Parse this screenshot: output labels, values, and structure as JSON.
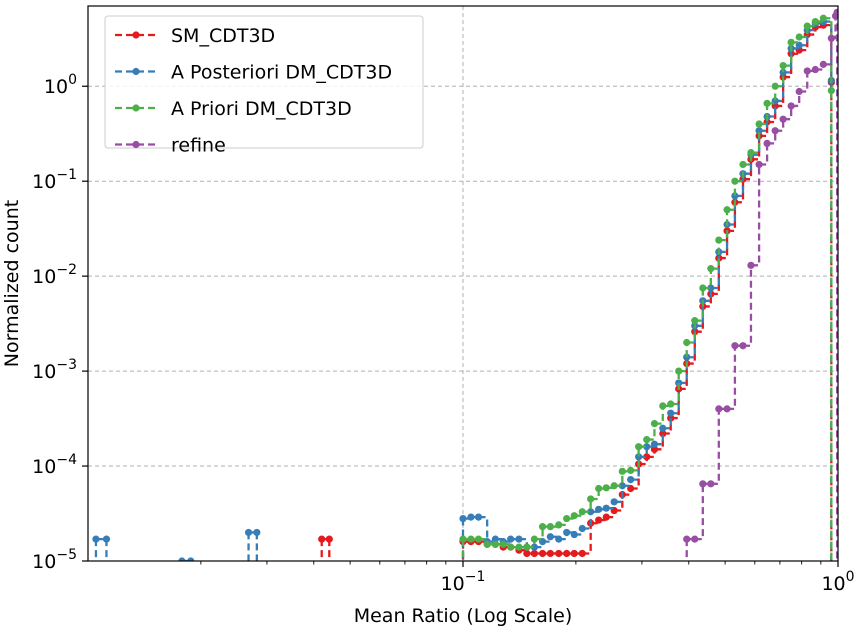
{
  "chart_data": {
    "type": "line",
    "title": "",
    "xlabel": "Mean Ratio (Log Scale)",
    "ylabel": "Normalized count",
    "xscale": "log",
    "yscale": "log",
    "xlim": [
      0.01,
      1.0
    ],
    "ylim": [
      1e-05,
      7
    ],
    "grid": true,
    "legend_position": "upper-left",
    "x_ticks": [
      {
        "value": 0.1,
        "base": "10",
        "exp": "−1"
      },
      {
        "value": 1.0,
        "base": "10",
        "exp": "0"
      }
    ],
    "y_ticks": [
      {
        "value": 1e-05,
        "base": "10",
        "exp": "−5"
      },
      {
        "value": 0.0001,
        "base": "10",
        "exp": "−4"
      },
      {
        "value": 0.001,
        "base": "10",
        "exp": "−3"
      },
      {
        "value": 0.01,
        "base": "10",
        "exp": "−2"
      },
      {
        "value": 0.1,
        "base": "10",
        "exp": "−1"
      },
      {
        "value": 1,
        "base": "10",
        "exp": "0"
      }
    ],
    "series": [
      {
        "name": "SM_CDT3D",
        "color": "#e41a1c",
        "points": [
          [
            0.042,
            1.7e-05
          ],
          [
            0.044,
            1.7e-05
          ],
          [
            0.1,
            1.6e-05
          ],
          [
            0.105,
            1.6e-05
          ],
          [
            0.11,
            1.6e-05
          ],
          [
            0.116,
            1.5e-05
          ],
          [
            0.122,
            1.5e-05
          ],
          [
            0.128,
            1.4e-05
          ],
          [
            0.134,
            1.4e-05
          ],
          [
            0.141,
            1.3e-05
          ],
          [
            0.148,
            1.2e-05
          ],
          [
            0.155,
            1.2e-05
          ],
          [
            0.163,
            1.2e-05
          ],
          [
            0.171,
            1.2e-05
          ],
          [
            0.18,
            1.2e-05
          ],
          [
            0.189,
            1.2e-05
          ],
          [
            0.198,
            1.2e-05
          ],
          [
            0.208,
            1.2e-05
          ],
          [
            0.219,
            2.5e-05
          ],
          [
            0.23,
            2.7e-05
          ],
          [
            0.241,
            2.9e-05
          ],
          [
            0.253,
            3.4e-05
          ],
          [
            0.266,
            5e-05
          ],
          [
            0.28,
            5.8e-05
          ],
          [
            0.294,
            0.000105
          ],
          [
            0.309,
            0.000125
          ],
          [
            0.324,
            0.00015
          ],
          [
            0.341,
            0.00022
          ],
          [
            0.358,
            0.00032
          ],
          [
            0.376,
            0.00065
          ],
          [
            0.395,
            0.0012
          ],
          [
            0.415,
            0.0026
          ],
          [
            0.436,
            0.0048
          ],
          [
            0.458,
            0.0065
          ],
          [
            0.481,
            0.0155
          ],
          [
            0.506,
            0.03
          ],
          [
            0.531,
            0.06
          ],
          [
            0.558,
            0.105
          ],
          [
            0.586,
            0.17
          ],
          [
            0.616,
            0.3
          ],
          [
            0.647,
            0.42
          ],
          [
            0.68,
            0.62
          ],
          [
            0.714,
            1.25
          ],
          [
            0.75,
            2.2
          ],
          [
            0.788,
            2.4
          ],
          [
            0.828,
            3.5
          ],
          [
            0.87,
            4.2
          ],
          [
            0.914,
            4.4
          ],
          [
            0.96,
            1.1
          ]
        ]
      },
      {
        "name": "A Posteriori DM_CDT3D",
        "color": "#377eb8",
        "points": [
          [
            0.0105,
            1.7e-05
          ],
          [
            0.0112,
            1.7e-05
          ],
          [
            0.0178,
            1e-05
          ],
          [
            0.0188,
            1e-05
          ],
          [
            0.0268,
            2e-05
          ],
          [
            0.0282,
            2e-05
          ],
          [
            0.1,
            2.8e-05
          ],
          [
            0.105,
            2.9e-05
          ],
          [
            0.11,
            2.9e-05
          ],
          [
            0.116,
            1.6e-05
          ],
          [
            0.122,
            1.7e-05
          ],
          [
            0.128,
            1.6e-05
          ],
          [
            0.134,
            1.7e-05
          ],
          [
            0.141,
            1.7e-05
          ],
          [
            0.148,
            1.4e-05
          ],
          [
            0.155,
            1.4e-05
          ],
          [
            0.163,
            1.6e-05
          ],
          [
            0.171,
            1.8e-05
          ],
          [
            0.18,
            1.7e-05
          ],
          [
            0.189,
            2e-05
          ],
          [
            0.198,
            1.9e-05
          ],
          [
            0.208,
            2.2e-05
          ],
          [
            0.219,
            3.3e-05
          ],
          [
            0.23,
            3.5e-05
          ],
          [
            0.241,
            3.6e-05
          ],
          [
            0.253,
            4.2e-05
          ],
          [
            0.266,
            6.2e-05
          ],
          [
            0.28,
            7.2e-05
          ],
          [
            0.294,
            0.000125
          ],
          [
            0.309,
            0.00016
          ],
          [
            0.324,
            0.00017
          ],
          [
            0.341,
            0.00025
          ],
          [
            0.358,
            0.00036
          ],
          [
            0.376,
            0.00075
          ],
          [
            0.395,
            0.0014
          ],
          [
            0.415,
            0.003
          ],
          [
            0.436,
            0.0055
          ],
          [
            0.458,
            0.0075
          ],
          [
            0.481,
            0.018
          ],
          [
            0.506,
            0.035
          ],
          [
            0.531,
            0.07
          ],
          [
            0.558,
            0.12
          ],
          [
            0.586,
            0.19
          ],
          [
            0.616,
            0.34
          ],
          [
            0.647,
            0.48
          ],
          [
            0.68,
            0.7
          ],
          [
            0.714,
            1.4
          ],
          [
            0.75,
            2.5
          ],
          [
            0.788,
            2.7
          ],
          [
            0.828,
            3.9
          ],
          [
            0.87,
            4.6
          ],
          [
            0.914,
            4.8
          ],
          [
            0.96,
            1.15
          ]
        ]
      },
      {
        "name": "A Priori DM_CDT3D",
        "color": "#4daf4a",
        "points": [
          [
            0.1,
            1.7e-05
          ],
          [
            0.105,
            1.7e-05
          ],
          [
            0.11,
            1.7e-05
          ],
          [
            0.116,
            1.5e-05
          ],
          [
            0.122,
            1.5e-05
          ],
          [
            0.128,
            1.5e-05
          ],
          [
            0.134,
            1.4e-05
          ],
          [
            0.141,
            1.4e-05
          ],
          [
            0.148,
            1.4e-05
          ],
          [
            0.155,
            1.7e-05
          ],
          [
            0.163,
            2.3e-05
          ],
          [
            0.171,
            2.3e-05
          ],
          [
            0.18,
            2.4e-05
          ],
          [
            0.189,
            2.8e-05
          ],
          [
            0.198,
            3e-05
          ],
          [
            0.208,
            3.3e-05
          ],
          [
            0.219,
            4.5e-05
          ],
          [
            0.23,
            5.8e-05
          ],
          [
            0.241,
            5.9e-05
          ],
          [
            0.253,
            6.2e-05
          ],
          [
            0.266,
            8.8e-05
          ],
          [
            0.28,
            9e-05
          ],
          [
            0.294,
            0.00016
          ],
          [
            0.309,
            0.00019
          ],
          [
            0.324,
            0.00028
          ],
          [
            0.341,
            0.00043
          ],
          [
            0.358,
            0.00045
          ],
          [
            0.376,
            0.001
          ],
          [
            0.395,
            0.002
          ],
          [
            0.415,
            0.0034
          ],
          [
            0.436,
            0.0075
          ],
          [
            0.458,
            0.012
          ],
          [
            0.481,
            0.024
          ],
          [
            0.506,
            0.05
          ],
          [
            0.531,
            0.1
          ],
          [
            0.558,
            0.15
          ],
          [
            0.586,
            0.2
          ],
          [
            0.616,
            0.4
          ],
          [
            0.647,
            0.66
          ],
          [
            0.68,
            1.0
          ],
          [
            0.714,
            1.65
          ],
          [
            0.75,
            2.9
          ],
          [
            0.788,
            3.3
          ],
          [
            0.828,
            4.3
          ],
          [
            0.87,
            4.8
          ],
          [
            0.914,
            5.2
          ],
          [
            0.96,
            0.9
          ]
        ]
      },
      {
        "name": "refine",
        "color": "#984ea3",
        "points": [
          [
            0.395,
            1.7e-05
          ],
          [
            0.415,
            1.7e-05
          ],
          [
            0.436,
            6.5e-05
          ],
          [
            0.458,
            6.5e-05
          ],
          [
            0.481,
            0.0004
          ],
          [
            0.506,
            0.0004
          ],
          [
            0.531,
            0.00185
          ],
          [
            0.558,
            0.00185
          ],
          [
            0.586,
            0.013
          ],
          [
            0.616,
            0.15
          ],
          [
            0.647,
            0.25
          ],
          [
            0.68,
            0.34
          ],
          [
            0.714,
            0.45
          ],
          [
            0.75,
            0.62
          ],
          [
            0.788,
            0.88
          ],
          [
            0.828,
            1.45
          ],
          [
            0.87,
            1.5
          ],
          [
            0.914,
            1.7
          ],
          [
            0.96,
            3.2
          ],
          [
            0.985,
            5.5
          ],
          [
            0.995,
            6.0
          ]
        ]
      }
    ]
  }
}
